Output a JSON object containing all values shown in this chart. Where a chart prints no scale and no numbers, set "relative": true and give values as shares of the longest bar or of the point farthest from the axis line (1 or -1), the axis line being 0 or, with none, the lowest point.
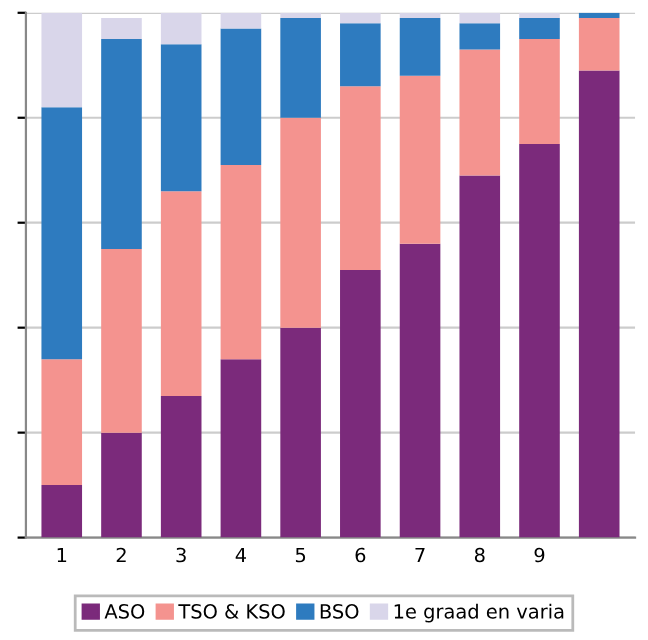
{
  "chart_data": {
    "type": "bar",
    "stacked": true,
    "relative": true,
    "categories": [
      "1",
      "2",
      "3",
      "4",
      "5",
      "6",
      "7",
      "8",
      "9",
      null
    ],
    "series": [
      {
        "name": "ASO",
        "color": "#7b2a7b",
        "values": [
          0.1,
          0.2,
          0.27,
          0.34,
          0.4,
          0.51,
          0.56,
          0.69,
          0.75,
          0.89
        ]
      },
      {
        "name": "TSO & KSO",
        "color": "#f4938f",
        "values": [
          0.24,
          0.35,
          0.39,
          0.37,
          0.4,
          0.35,
          0.32,
          0.24,
          0.2,
          0.1
        ]
      },
      {
        "name": "BSO",
        "color": "#2e7bbf",
        "values": [
          0.48,
          0.4,
          0.28,
          0.26,
          0.19,
          0.12,
          0.11,
          0.05,
          0.04,
          0.01
        ]
      },
      {
        "name": "1e graad en varia",
        "color": "#d9d6ea",
        "values": [
          0.18,
          0.04,
          0.06,
          0.03,
          0.01,
          0.02,
          0.01,
          0.02,
          0.01,
          0.0
        ]
      }
    ],
    "grid": "y",
    "legend": "bottom"
  }
}
